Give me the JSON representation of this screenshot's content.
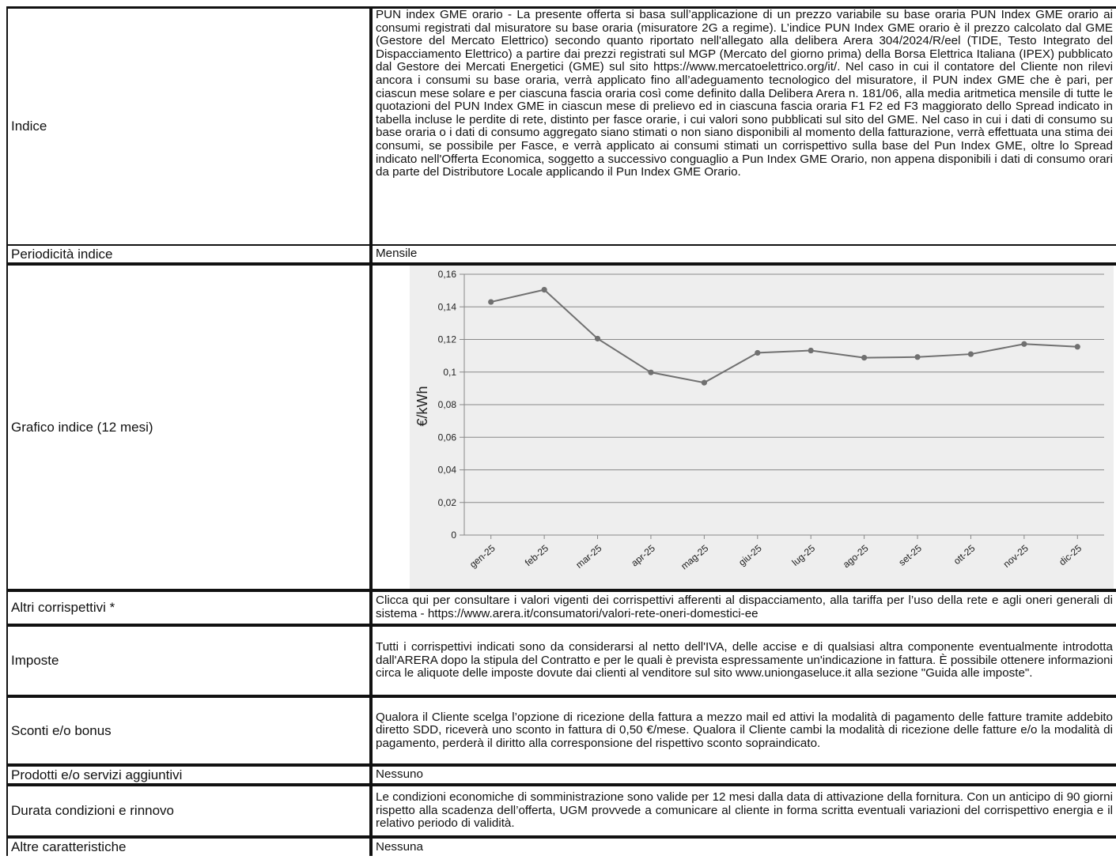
{
  "rows": [
    {
      "label": "Indice",
      "value": "PUN index GME orario - La presente offerta si basa sull’applicazione di un prezzo variabile su base oraria PUN Index GME orario ai consumi registrati dal misuratore su base oraria (misuratore 2G a regime). L’indice PUN Index GME orario è il prezzo calcolato dal GME (Gestore del Mercato Elettrico) secondo quanto riportato nell'allegato alla delibera Arera 304/2024/R/eel (TIDE, Testo Integrato del Dispacciamento Elettrico) a partire dai prezzi registrati sul MGP (Mercato del giorno prima) della Borsa Elettrica Italiana (IPEX) pubblicato dal Gestore dei Mercati Energetici (GME) sul sito https://www.mercatoelettrico.org/it/. Nel caso in cui il contatore del Cliente non rilevi ancora i consumi su base oraria, verrà applicato fino all’adeguamento tecnologico del misuratore, il PUN index GME che è pari, per ciascun mese solare e per ciascuna fascia oraria così come definito dalla Delibera Arera n. 181/06, alla media aritmetica mensile di tutte le quotazioni del PUN Index GME in ciascun mese di prelievo ed in ciascuna fascia oraria F1 F2 ed F3 maggiorato dello Spread indicato in tabella incluse le perdite di rete, distinto per fasce orarie, i cui valori sono pubblicati sul sito del GME. Nel caso in cui i dati di consumo su base oraria o i dati di consumo aggregato siano stimati o non siano disponibili al momento della fatturazione, verrà effettuata una stima dei consumi, se possibile per Fasce, e verrà applicato ai consumi stimati un corrispettivo sulla base del Pun Index GME, oltre lo Spread indicato nell'Offerta Economica, soggetto a successivo conguaglio a Pun Index GME Orario, non appena disponibili i dati di consumo orari da parte del Distributore Locale applicando il Pun Index GME Orario."
    },
    {
      "label": "Periodicità indice",
      "value": "Mensile"
    },
    {
      "label": "Grafico indice (12 mesi)"
    },
    {
      "label": "Altri corrispettivi *",
      "value": "Clicca qui per consultare i valori vigenti dei corrispettivi afferenti al dispacciamento, alla tariffa per l’uso della rete e agli oneri generali di sistema - https://www.arera.it/consumatori/valori-rete-oneri-domestici-ee"
    },
    {
      "label": "Imposte",
      "value": "Tutti i corrispettivi indicati sono da considerarsi al netto dell'IVA, delle accise e di qualsiasi altra componente eventualmente introdotta dall'ARERA dopo la stipula del Contratto e per le quali è prevista espressamente un'indicazione in fattura. È possibile ottenere informazioni circa le aliquote delle imposte dovute dai clienti al venditore sul sito www.uniongaseluce.it alla sezione \"Guida alle imposte\"."
    },
    {
      "label": "Sconti e/o bonus",
      "value": "Qualora il Cliente scelga l’opzione di ricezione della fattura a mezzo mail ed attivi la modalità di pagamento delle fatture tramite addebito diretto SDD, riceverà uno sconto in fattura di 0,50 €/mese. Qualora il Cliente cambi la modalità di ricezione delle fatture e/o la modalità di pagamento, perderà il diritto alla corresponsione del rispettivo sconto sopraindicato."
    },
    {
      "label": "Prodotti e/o servizi aggiuntivi",
      "value": "Nessuno"
    },
    {
      "label": "Durata condizioni e rinnovo",
      "value": "Le condizioni economiche di somministrazione sono valide per 12 mesi dalla data di attivazione della fornitura. Con un anticipo di 90 giorni rispetto alla scadenza dell’offerta, UGM provvede a comunicare al cliente in forma scritta eventuali variazioni del corrispettivo energia e il relativo periodo di validità."
    },
    {
      "label": "Altre caratteristiche",
      "value": "Nessuna"
    }
  ],
  "chart_data": {
    "type": "line",
    "categories": [
      "gen-25",
      "feb-25",
      "mar-25",
      "apr-25",
      "mag-25",
      "giu-25",
      "lug-25",
      "ago-25",
      "set-25",
      "ott-25",
      "nov-25",
      "dic-25"
    ],
    "values": [
      0.143,
      0.1505,
      0.1205,
      0.0998,
      0.0935,
      0.1118,
      0.1132,
      0.1088,
      0.1092,
      0.111,
      0.1172,
      0.1155
    ],
    "ylabel": "€/kWh",
    "ylim": [
      0,
      0.16
    ],
    "yticks": [
      "0",
      "0,02",
      "0,04",
      "0,06",
      "0,08",
      "0,1",
      "0,12",
      "0,14",
      "0,16"
    ],
    "grid": true,
    "line_color": "#707070",
    "grid_color": "#888888"
  }
}
